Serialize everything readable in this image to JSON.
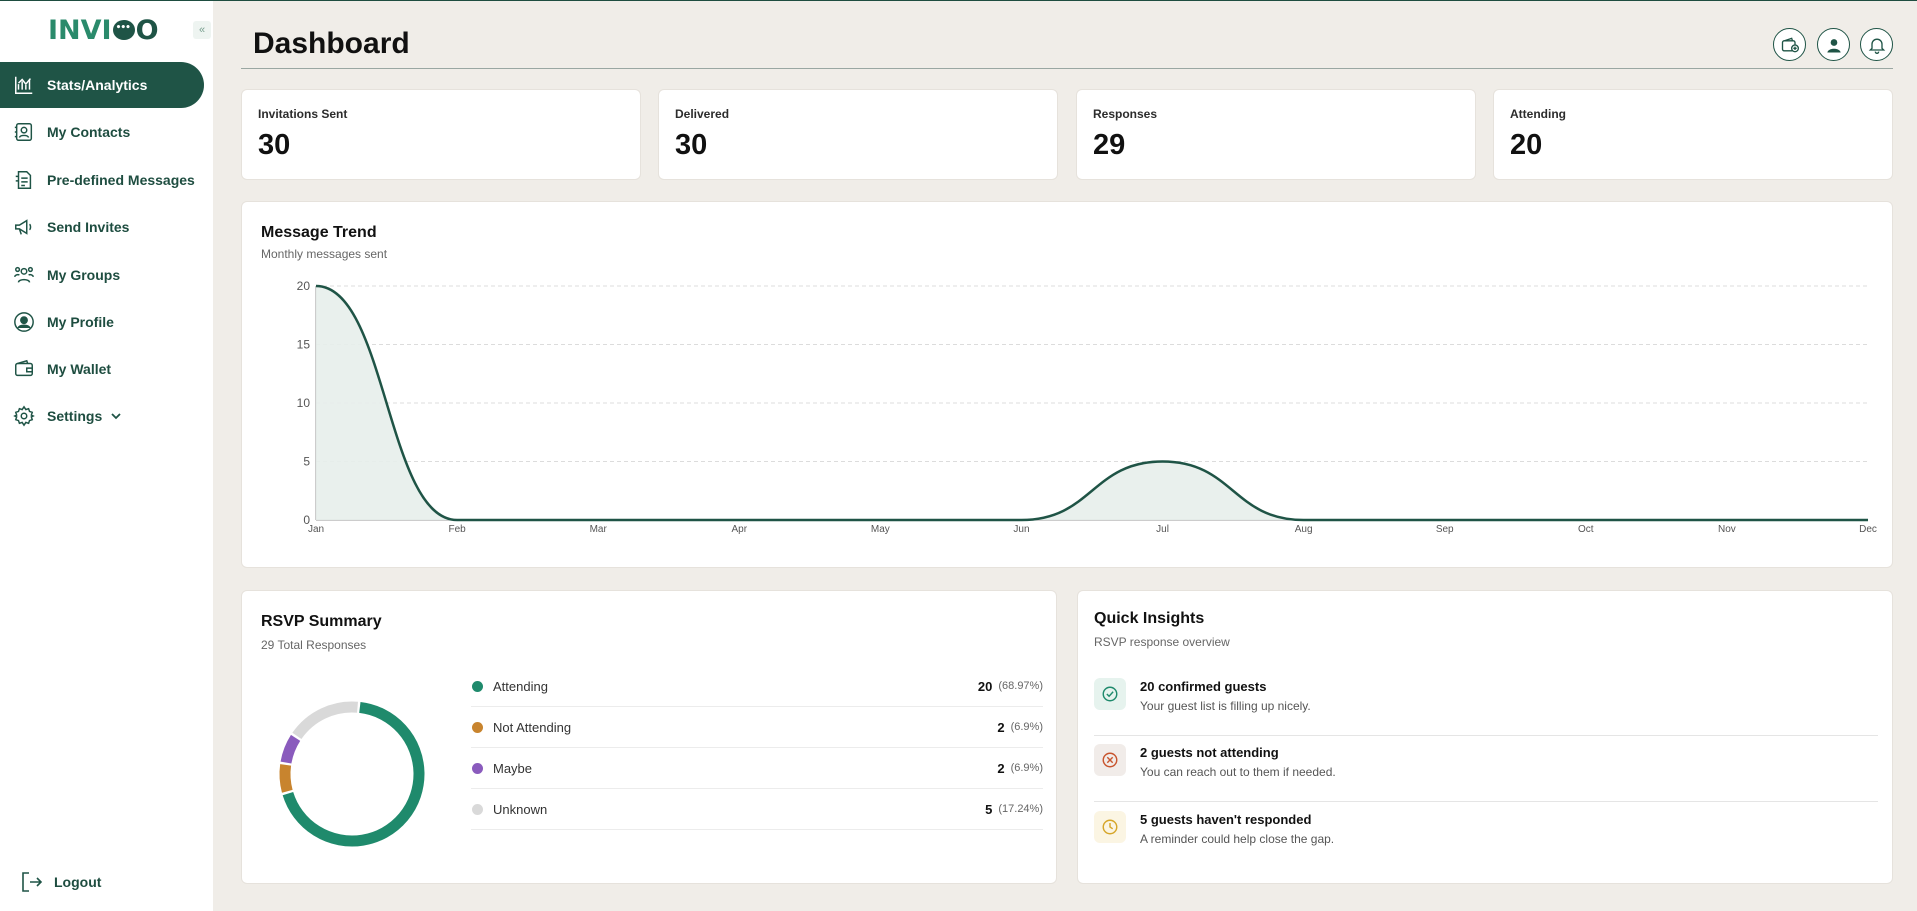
{
  "app": {
    "logo_text": "INVIQO"
  },
  "sidebar": {
    "items": [
      {
        "label": "Stats/Analytics",
        "icon": "chart-icon",
        "active": true
      },
      {
        "label": "My Contacts",
        "icon": "contacts-icon"
      },
      {
        "label": "Pre-defined Messages",
        "icon": "messages-icon"
      },
      {
        "label": "Send Invites",
        "icon": "megaphone-icon"
      },
      {
        "label": "My Groups",
        "icon": "groups-icon"
      },
      {
        "label": "My Profile",
        "icon": "profile-icon"
      },
      {
        "label": "My Wallet",
        "icon": "wallet-icon"
      },
      {
        "label": "Settings",
        "icon": "settings-icon"
      }
    ],
    "logout_label": "Logout"
  },
  "header": {
    "title": "Dashboard"
  },
  "stats": [
    {
      "label": "Invitations Sent",
      "value": "30"
    },
    {
      "label": "Delivered",
      "value": "30"
    },
    {
      "label": "Responses",
      "value": "29"
    },
    {
      "label": "Attending",
      "value": "20"
    }
  ],
  "trend": {
    "title": "Message Trend",
    "subtitle": "Monthly messages sent"
  },
  "chart_data": {
    "type": "area",
    "categories": [
      "Jan",
      "Feb",
      "Mar",
      "Apr",
      "May",
      "Jun",
      "Jul",
      "Aug",
      "Sep",
      "Oct",
      "Nov",
      "Dec"
    ],
    "values": [
      20,
      0,
      0,
      0,
      0,
      0,
      5,
      0,
      0,
      0,
      0,
      0
    ],
    "yticks": [
      0,
      5,
      10,
      15,
      20
    ],
    "ylim": [
      0,
      20
    ],
    "grid": true,
    "colors": {
      "line": "#1f5446",
      "fill": "#e7eeeb"
    }
  },
  "rsvp": {
    "title": "RSVP Summary",
    "subtitle": "29 Total Responses",
    "items": [
      {
        "label": "Attending",
        "count": "20",
        "pct": "(68.97%)",
        "value": 20,
        "color": "#1f8a6c"
      },
      {
        "label": "Not Attending",
        "count": "2",
        "pct": "(6.9%)",
        "value": 2,
        "color": "#c8842e"
      },
      {
        "label": "Maybe",
        "count": "2",
        "pct": "(6.9%)",
        "value": 2,
        "color": "#8a5bbd"
      },
      {
        "label": "Unknown",
        "count": "5",
        "pct": "(17.24%)",
        "value": 5,
        "color": "#d9d9d9"
      }
    ]
  },
  "insights": {
    "title": "Quick Insights",
    "subtitle": "RSVP response overview",
    "items": [
      {
        "title": "20 confirmed guests",
        "desc": "Your guest list is filling up nicely.",
        "icon": "check-circle-icon",
        "color": "#1f8a6c",
        "bg": "#e6f3ee"
      },
      {
        "title": "2 guests not attending",
        "desc": "You can reach out to them if needed.",
        "icon": "x-circle-icon",
        "color": "#c8552e",
        "bg": "#f1ece9"
      },
      {
        "title": "5 guests haven't responded",
        "desc": "A reminder could help close the gap.",
        "icon": "clock-icon",
        "color": "#d6a62a",
        "bg": "#fbf5e3"
      }
    ]
  }
}
